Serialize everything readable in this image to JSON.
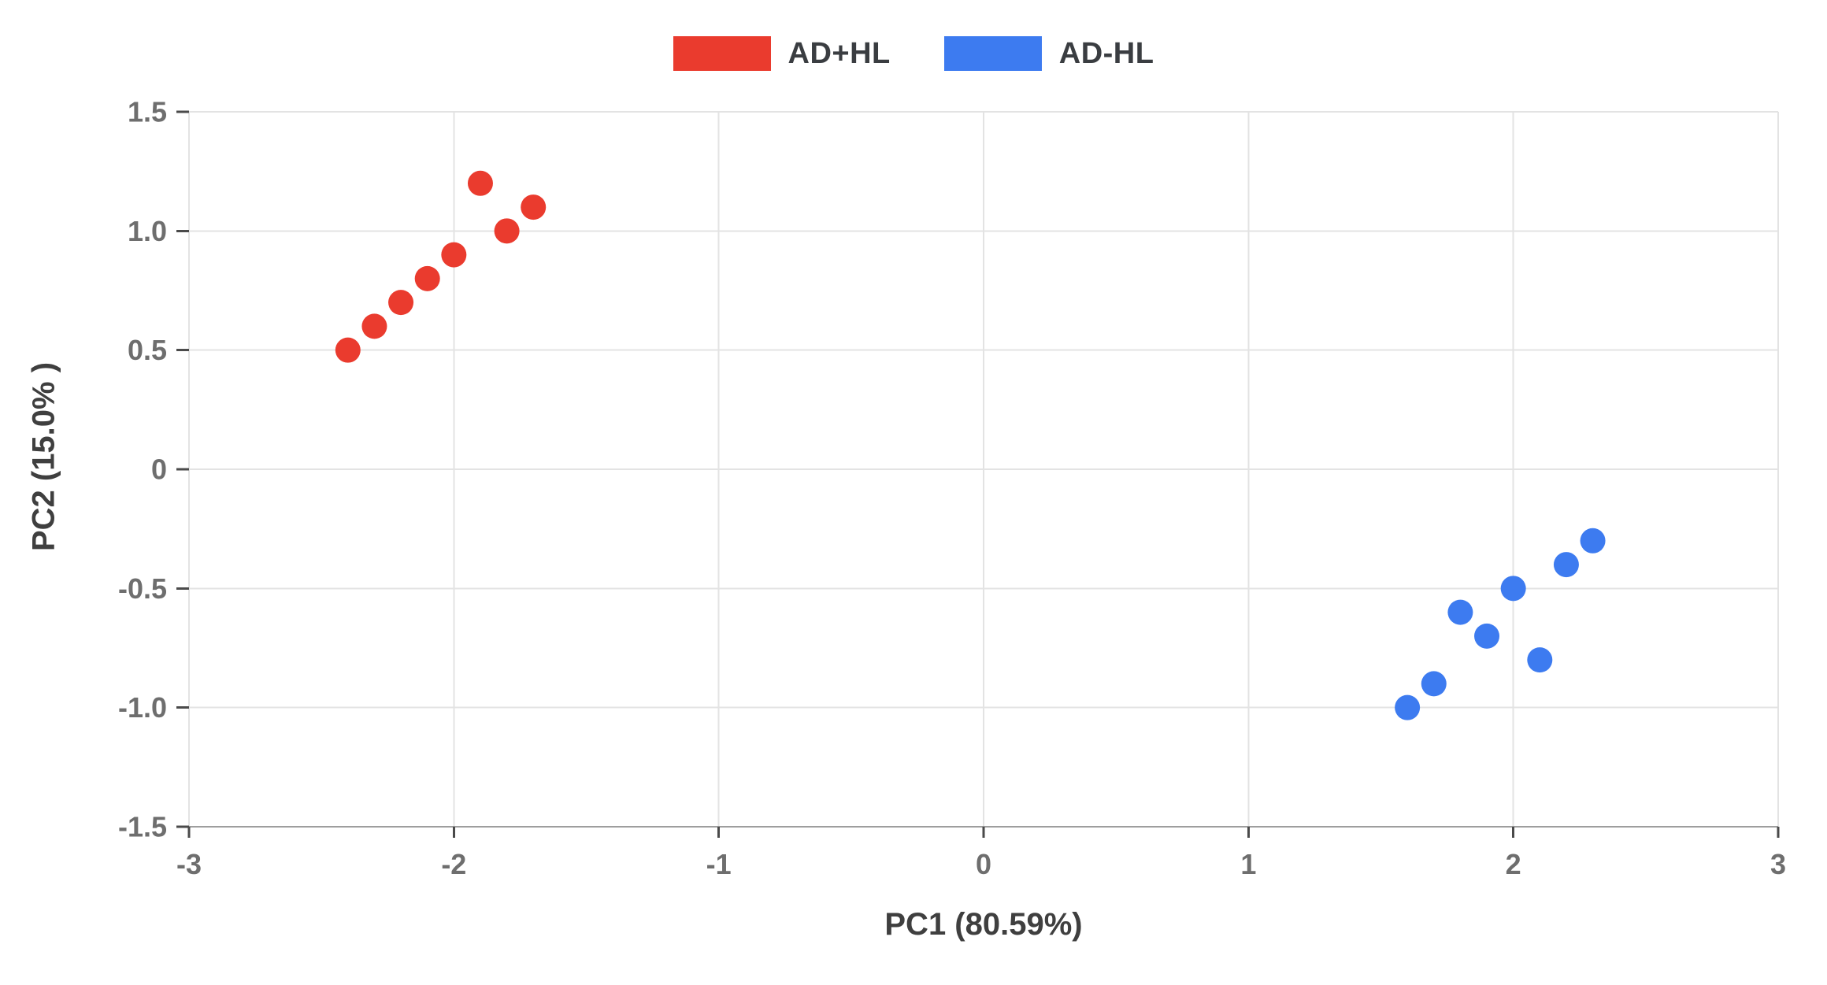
{
  "chart_data": {
    "type": "scatter",
    "title": "",
    "xlabel": "PC1 (80.59%)",
    "ylabel": "PC2 (15.0% )",
    "xlim": [
      -3,
      3
    ],
    "ylim": [
      -1.5,
      1.5
    ],
    "grid": true,
    "legend_position": "top-center",
    "background_color": "#ffffff",
    "gridline_color": "#e3e3e3",
    "axis_line_color": "#9e9e9e",
    "tick_mark_color": "#4a4a4a",
    "tick_label_color": "#6e6e6e",
    "axis_title_color": "#3f3f3f",
    "point_radius_px": 16,
    "x_ticks": [
      {
        "value": -3,
        "label": "-3"
      },
      {
        "value": -2,
        "label": "-2"
      },
      {
        "value": -1,
        "label": "-1"
      },
      {
        "value": 0,
        "label": "0"
      },
      {
        "value": 1,
        "label": "1"
      },
      {
        "value": 2,
        "label": "2"
      },
      {
        "value": 3,
        "label": "3"
      }
    ],
    "y_ticks": [
      {
        "value": 1.5,
        "label": "1.5"
      },
      {
        "value": 1.0,
        "label": "1.0"
      },
      {
        "value": 0.5,
        "label": "0.5"
      },
      {
        "value": 0,
        "label": "0"
      },
      {
        "value": -0.5,
        "label": "-0.5"
      },
      {
        "value": -1.0,
        "label": "-1.0"
      },
      {
        "value": -1.5,
        "label": "-1.5"
      }
    ],
    "series": [
      {
        "name": "AD+HL",
        "color": "#ea3b2e",
        "points": [
          [
            -2.4,
            0.5
          ],
          [
            -2.3,
            0.6
          ],
          [
            -2.2,
            0.7
          ],
          [
            -2.1,
            0.8
          ],
          [
            -2.0,
            0.9
          ],
          [
            -1.9,
            1.2
          ],
          [
            -1.8,
            1.0
          ],
          [
            -1.7,
            1.1
          ]
        ]
      },
      {
        "name": "AD-HL",
        "color": "#3d7bf0",
        "points": [
          [
            1.6,
            -1.0
          ],
          [
            1.7,
            -0.9
          ],
          [
            1.8,
            -0.6
          ],
          [
            1.9,
            -0.7
          ],
          [
            2.0,
            -0.5
          ],
          [
            2.1,
            -0.8
          ],
          [
            2.2,
            -0.4
          ],
          [
            2.3,
            -0.3
          ]
        ]
      }
    ]
  }
}
